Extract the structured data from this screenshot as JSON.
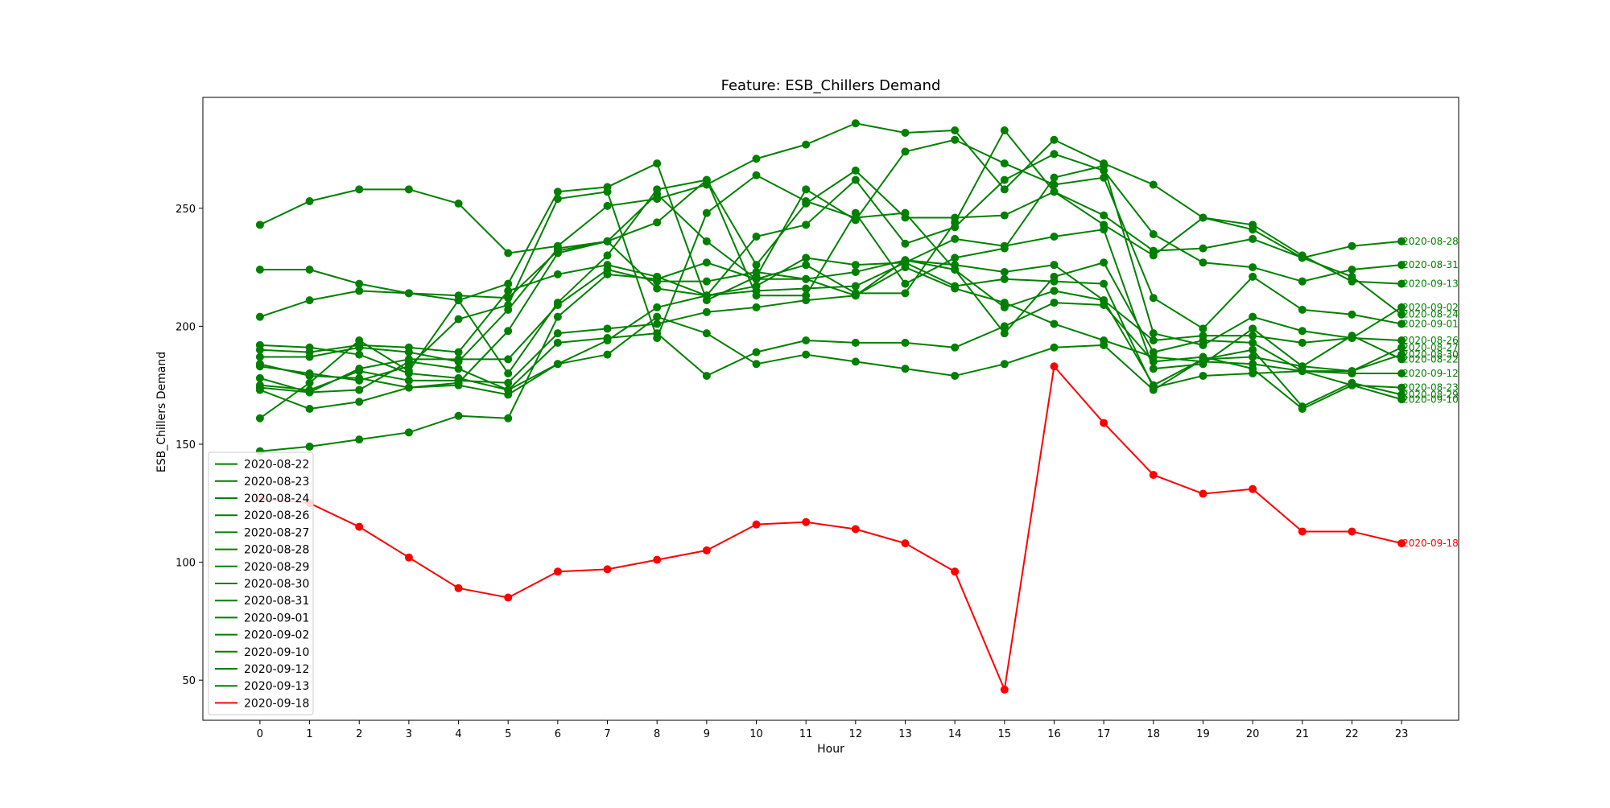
{
  "chart_data": {
    "type": "line",
    "title": "Feature: ESB_Chillers Demand",
    "xlabel": "Hour",
    "ylabel": "ESB_Chillers Demand",
    "x": [
      0,
      1,
      2,
      3,
      4,
      5,
      6,
      7,
      8,
      9,
      10,
      11,
      12,
      13,
      14,
      15,
      16,
      17,
      18,
      19,
      20,
      21,
      22,
      23
    ],
    "xlim": [
      -1.15,
      24.15
    ],
    "ylim": [
      33,
      297
    ],
    "yticks": [
      50,
      100,
      150,
      200,
      250
    ],
    "grid": false,
    "legend_position": "lower left",
    "series": [
      {
        "name": "2020-08-22",
        "color": "#008000",
        "values": [
          178,
          172,
          182,
          186,
          186,
          186,
          209,
          224,
          219,
          219,
          223,
          220,
          223,
          228,
          226,
          223,
          226,
          211,
          175,
          186,
          187,
          183,
          196,
          186
        ]
      },
      {
        "name": "2020-08-23",
        "color": "#008000",
        "values": [
          184,
          179,
          178,
          174,
          175,
          171,
          184,
          194,
          208,
          213,
          215,
          216,
          217,
          227,
          217,
          220,
          219,
          218,
          174,
          179,
          180,
          181,
          175,
          174
        ]
      },
      {
        "name": "2020-08-24",
        "color": "#008000",
        "values": [
          173,
          165,
          168,
          174,
          176,
          198,
          231,
          236,
          244,
          262,
          226,
          252,
          266,
          246,
          246,
          247,
          257,
          247,
          232,
          233,
          237,
          229,
          221,
          205
        ]
      },
      {
        "name": "2020-08-26",
        "color": "#008000",
        "values": [
          187,
          187,
          191,
          189,
          185,
          207,
          233,
          236,
          256,
          236,
          220,
          220,
          213,
          228,
          224,
          208,
          215,
          211,
          194,
          196,
          196,
          193,
          195,
          194
        ]
      },
      {
        "name": "2020-08-27",
        "color": "#008000",
        "values": [
          183,
          180,
          177,
          183,
          203,
          209,
          254,
          257,
          195,
          248,
          264,
          253,
          246,
          248,
          224,
          197,
          221,
          227,
          189,
          194,
          193,
          181,
          181,
          191
        ]
      },
      {
        "name": "2020-08-28",
        "color": "#008000",
        "values": [
          243,
          253,
          258,
          258,
          252,
          231,
          234,
          251,
          254,
          260,
          271,
          277,
          286,
          282,
          283,
          258,
          279,
          269,
          260,
          246,
          241,
          229,
          234,
          236
        ]
      },
      {
        "name": "2020-08-29",
        "color": "#008000",
        "values": [
          192,
          191,
          188,
          180,
          178,
          173,
          184,
          188,
          204,
          197,
          184,
          188,
          185,
          182,
          179,
          184,
          191,
          192,
          173,
          186,
          190,
          166,
          176,
          171
        ]
      },
      {
        "name": "2020-08-30",
        "color": "#008000",
        "values": [
          190,
          189,
          192,
          191,
          189,
          215,
          222,
          226,
          221,
          213,
          217,
          229,
          226,
          227,
          237,
          234,
          238,
          241,
          182,
          184,
          199,
          183,
          181,
          188
        ]
      },
      {
        "name": "2020-08-31",
        "color": "#008000",
        "values": [
          224,
          224,
          218,
          214,
          213,
          212,
          232,
          236,
          216,
          213,
          238,
          243,
          262,
          235,
          242,
          262,
          273,
          266,
          239,
          227,
          225,
          219,
          224,
          226
        ]
      },
      {
        "name": "2020-09-01",
        "color": "#008000",
        "values": [
          204,
          211,
          215,
          214,
          211,
          218,
          257,
          259,
          269,
          211,
          221,
          258,
          245,
          274,
          279,
          269,
          260,
          263,
          212,
          199,
          221,
          207,
          205,
          201
        ]
      },
      {
        "name": "2020-09-02",
        "color": "#008000",
        "values": [
          161,
          176,
          194,
          181,
          211,
          180,
          210,
          230,
          258,
          262,
          213,
          213,
          248,
          218,
          229,
          233,
          263,
          268,
          197,
          192,
          204,
          198,
          195,
          208
        ]
      },
      {
        "name": "2020-09-10",
        "color": "#008000",
        "values": [
          174,
          172,
          173,
          185,
          182,
          173,
          193,
          195,
          197,
          179,
          189,
          194,
          193,
          193,
          191,
          200,
          210,
          209,
          185,
          187,
          182,
          165,
          175,
          169
        ]
      },
      {
        "name": "2020-09-12",
        "color": "#008000",
        "values": [
          175,
          173,
          181,
          177,
          177,
          176,
          197,
          199,
          201,
          206,
          208,
          211,
          213,
          225,
          216,
          210,
          201,
          194,
          187,
          185,
          184,
          181,
          180,
          180
        ]
      },
      {
        "name": "2020-09-13",
        "color": "#008000",
        "values": [
          147,
          149,
          152,
          155,
          162,
          161,
          204,
          222,
          220,
          227,
          220,
          226,
          214,
          214,
          244,
          283,
          257,
          243,
          230,
          246,
          243,
          230,
          219,
          218
        ]
      },
      {
        "name": "2020-09-18",
        "color": "#ff0000",
        "values": [
          127,
          125,
          115,
          102,
          89,
          85,
          96,
          97,
          101,
          105,
          116,
          117,
          114,
          108,
          96,
          46,
          183,
          159,
          137,
          129,
          131,
          113,
          113,
          108
        ]
      }
    ]
  }
}
